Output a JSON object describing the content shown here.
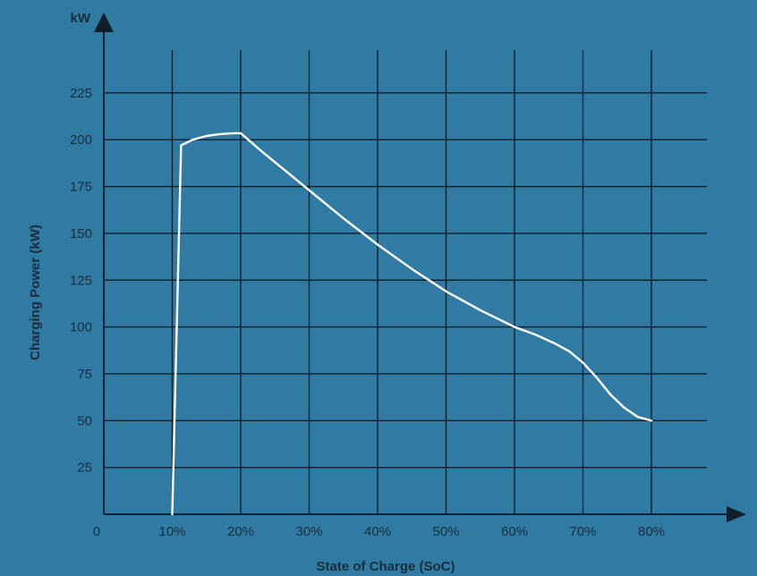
{
  "chart_data": {
    "type": "line",
    "xlabel": "State of Charge (SoC)",
    "ylabel": "Charging Power (kW)",
    "y_unit": "kW",
    "x_origin_label": "0",
    "x_ticks": [
      {
        "value": 10,
        "label": "10%"
      },
      {
        "value": 20,
        "label": "20%"
      },
      {
        "value": 30,
        "label": "30%"
      },
      {
        "value": 40,
        "label": "40%"
      },
      {
        "value": 50,
        "label": "50%"
      },
      {
        "value": 60,
        "label": "60%"
      },
      {
        "value": 70,
        "label": "70%"
      },
      {
        "value": 80,
        "label": "80%"
      }
    ],
    "y_ticks": [
      25,
      50,
      75,
      100,
      125,
      150,
      175,
      200,
      225
    ],
    "xlim": [
      0,
      88
    ],
    "ylim": [
      0,
      250
    ],
    "grid": true,
    "series": [
      {
        "color": "#ffffff",
        "x": [
          10,
          11.3,
          13,
          15,
          17,
          19,
          20,
          23,
          26,
          30,
          35,
          40,
          45,
          50,
          55,
          60,
          63,
          66,
          68,
          70,
          72,
          74,
          76,
          78,
          80
        ],
        "y": [
          0,
          197,
          200,
          202,
          203,
          203.5,
          203.5,
          194,
          185,
          173,
          158,
          144,
          131,
          119,
          109,
          100,
          96,
          91,
          87,
          81,
          73,
          64,
          57,
          52,
          50
        ]
      }
    ]
  },
  "colors": {
    "background": "#2f7ba3",
    "grid": "#0f1f2b",
    "line": "#ffffff",
    "text": "#1a2d3c"
  }
}
